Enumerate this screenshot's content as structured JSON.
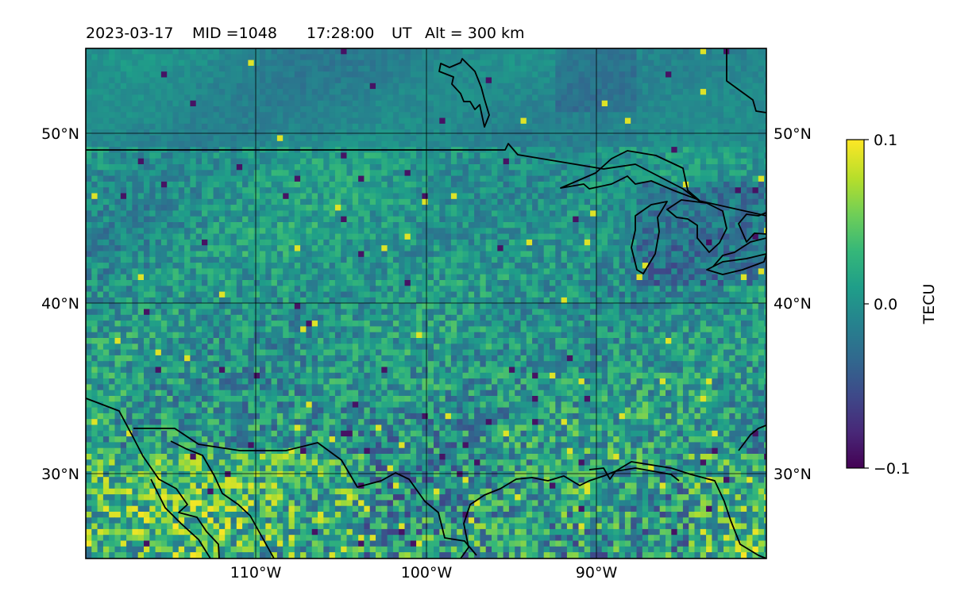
{
  "title": {
    "date": "2023-03-17",
    "mid": "MID =1048",
    "time": "17:28:00",
    "ut": "UT",
    "alt": "Alt = 300 km"
  },
  "map": {
    "lon_range": [
      -120,
      -80
    ],
    "lat_range": [
      25,
      55
    ],
    "lon_ticks": [
      {
        "value": -110,
        "label": "110°W"
      },
      {
        "value": -100,
        "label": "100°W"
      },
      {
        "value": -90,
        "label": "90°W"
      }
    ],
    "lat_ticks": [
      {
        "value": 50,
        "label": "50°N"
      },
      {
        "value": 40,
        "label": "40°N"
      },
      {
        "value": 30,
        "label": "30°N"
      }
    ],
    "grid": true,
    "field": "Differential TEC pixel field (noise, cooler over Great Lakes/north, warmer along Gulf coast)"
  },
  "colorbar": {
    "label": "TECU",
    "min": -0.1,
    "max": 0.1,
    "ticks": [
      {
        "value": 0.1,
        "label": "0.1"
      },
      {
        "value": 0.0,
        "label": "0.0"
      },
      {
        "value": -0.1,
        "label": "−0.1"
      }
    ],
    "colormap": [
      "#440154",
      "#482878",
      "#3e4989",
      "#31688e",
      "#26828e",
      "#1f9e89",
      "#35b779",
      "#6ece58",
      "#b5de2b",
      "#fde725"
    ]
  }
}
